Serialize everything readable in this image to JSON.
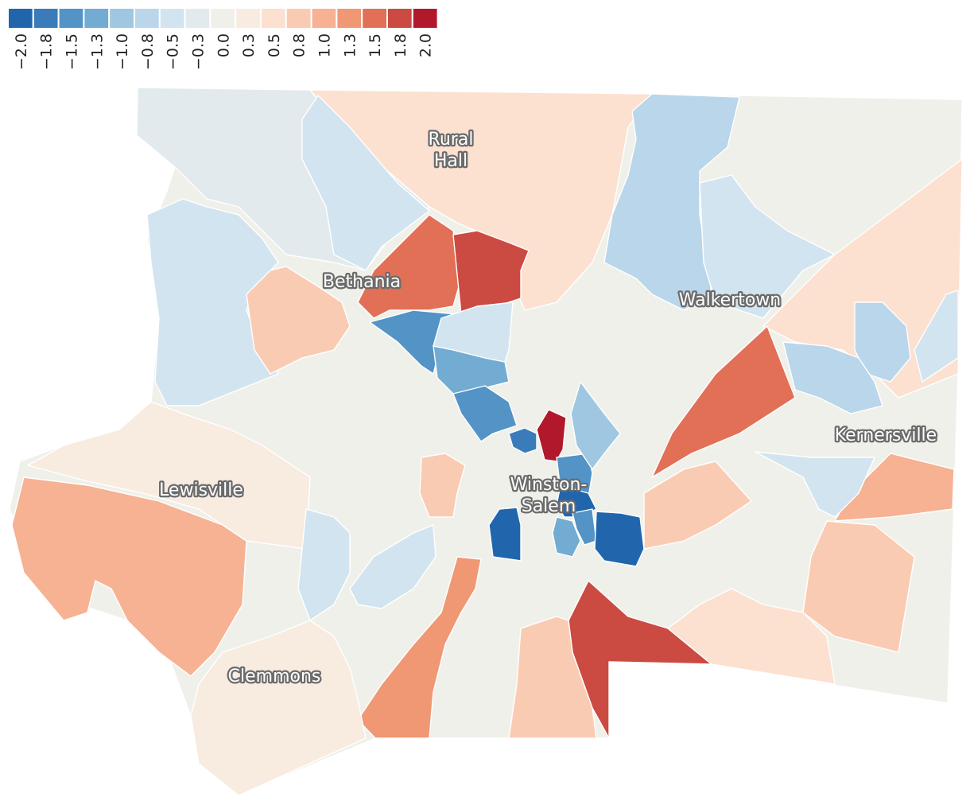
{
  "legend": {
    "items": [
      {
        "label": "−2.0",
        "color": "#2166ac"
      },
      {
        "label": "−1.8",
        "color": "#3a7cba"
      },
      {
        "label": "−1.5",
        "color": "#5393c6"
      },
      {
        "label": "−1.3",
        "color": "#72acd3"
      },
      {
        "label": "−1.0",
        "color": "#9fc7e1"
      },
      {
        "label": "−0.8",
        "color": "#bad6ea"
      },
      {
        "label": "−0.5",
        "color": "#d2e4ef"
      },
      {
        "label": "−0.3",
        "color": "#e3eaee"
      },
      {
        "label": "0.0",
        "color": "#f0f0ea"
      },
      {
        "label": "0.3",
        "color": "#f8ebe0"
      },
      {
        "label": "0.5",
        "color": "#fce0d0"
      },
      {
        "label": "0.8",
        "color": "#facbb3"
      },
      {
        "label": "1.0",
        "color": "#f6b293"
      },
      {
        "label": "1.3",
        "color": "#f09774"
      },
      {
        "label": "1.5",
        "color": "#e17057"
      },
      {
        "label": "1.8",
        "color": "#cb4a42"
      },
      {
        "label": "2.0",
        "color": "#b2182b"
      }
    ]
  },
  "places": [
    {
      "id": "rural-hall",
      "lines": [
        "Rural",
        "Hall"
      ]
    },
    {
      "id": "bethania",
      "lines": [
        "Bethania"
      ]
    },
    {
      "id": "walkertown",
      "lines": [
        "Walkertown"
      ]
    },
    {
      "id": "kernersville",
      "lines": [
        "Kernersville"
      ]
    },
    {
      "id": "lewisville",
      "lines": [
        "Lewisville"
      ]
    },
    {
      "id": "winston-salem",
      "lines": [
        "Winston-",
        "Salem"
      ]
    },
    {
      "id": "clemmons",
      "lines": [
        "Clemmons"
      ]
    }
  ],
  "regions": [
    {
      "id": "county-outline",
      "value": 0.0
    },
    {
      "id": "north-central",
      "value": 0.5
    },
    {
      "id": "northwest-light",
      "value": -0.3
    },
    {
      "id": "north-upper",
      "value": -0.5
    },
    {
      "id": "northeast-blue",
      "value": -0.8
    },
    {
      "id": "northeast-light",
      "value": -0.5
    },
    {
      "id": "east-far",
      "value": 0.5
    },
    {
      "id": "east-blue-a",
      "value": -0.8
    },
    {
      "id": "east-blue-b",
      "value": -0.5
    },
    {
      "id": "east-blue-c",
      "value": -0.8
    },
    {
      "id": "red-wedge-east",
      "value": 1.5
    },
    {
      "id": "east-mid-orange",
      "value": 1.0
    },
    {
      "id": "east-salmon",
      "value": 0.8
    },
    {
      "id": "west-blue",
      "value": -0.5
    },
    {
      "id": "west-salmon-small",
      "value": 0.8
    },
    {
      "id": "far-west-orange",
      "value": 1.0
    },
    {
      "id": "west-strip",
      "value": 0.3
    },
    {
      "id": "bethania-red",
      "value": 1.5
    },
    {
      "id": "bethania-dark-red",
      "value": 1.8
    },
    {
      "id": "nw-blue-strip",
      "value": -1.5
    },
    {
      "id": "nw-blue-light",
      "value": -1.3
    },
    {
      "id": "center-blue-mid",
      "value": -1.5
    },
    {
      "id": "downtown-dark-red",
      "value": 2.0
    },
    {
      "id": "downtown-blue-a",
      "value": -1.8
    },
    {
      "id": "downtown-blue-b",
      "value": -1.5
    },
    {
      "id": "downtown-blue-c",
      "value": -2.0
    },
    {
      "id": "downtown-blue-d",
      "value": -2.0
    },
    {
      "id": "downtown-blue-e",
      "value": -1.3
    },
    {
      "id": "downtown-blue-f",
      "value": -1.5
    },
    {
      "id": "downtown-blue-g",
      "value": -2.0
    },
    {
      "id": "ne-blue-strip",
      "value": -1.0
    },
    {
      "id": "south-dark-red",
      "value": 1.8
    },
    {
      "id": "south-orange-strip",
      "value": 1.3
    },
    {
      "id": "south-salmon",
      "value": 0.8
    },
    {
      "id": "southeast-light",
      "value": 0.5
    },
    {
      "id": "southeast-salmon",
      "value": 0.8
    },
    {
      "id": "clemmons-area",
      "value": 0.3
    },
    {
      "id": "center-salmon",
      "value": 0.8
    },
    {
      "id": "center-blue-light",
      "value": -0.5
    },
    {
      "id": "mid-east-blue",
      "value": -0.5
    },
    {
      "id": "mid-south-blue",
      "value": -0.5
    },
    {
      "id": "sw-blue",
      "value": -0.5
    }
  ]
}
